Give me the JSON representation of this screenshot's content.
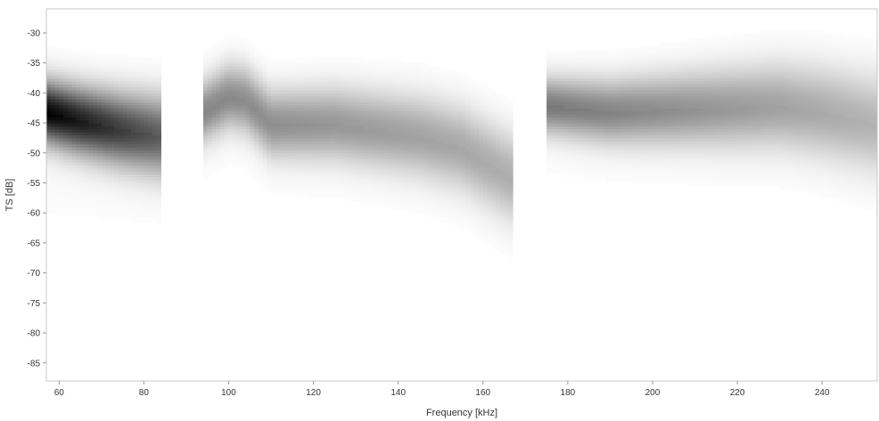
{
  "chart_data": {
    "type": "heatmap",
    "title": "",
    "xlabel": "Frequency [kHz]",
    "ylabel": "TS [dB]",
    "xlim": [
      57,
      253
    ],
    "ylim": [
      -88,
      -26
    ],
    "x_ticks": [
      60,
      80,
      100,
      120,
      140,
      160,
      180,
      200,
      220,
      240
    ],
    "y_ticks": [
      -30,
      -35,
      -40,
      -45,
      -50,
      -55,
      -60,
      -65,
      -70,
      -75,
      -80,
      -85
    ],
    "grid": false,
    "legend": "none",
    "colormap": {
      "low": "#ffffff",
      "high": "#000000"
    },
    "gaps_khz": [
      [
        84,
        94
      ],
      [
        167,
        175
      ]
    ],
    "bands": [
      {
        "x": [
          57,
          84
        ],
        "center": [
          [
            57,
            -43
          ],
          [
            65,
            -44.5
          ],
          [
            75,
            -46
          ],
          [
            84,
            -47
          ]
        ],
        "spread": [
          3.5,
          4.5
        ],
        "peak": [
          0.95,
          0.6
        ]
      },
      {
        "x": [
          94,
          167
        ],
        "center": [
          [
            94,
            -43
          ],
          [
            100,
            -40.5
          ],
          [
            104,
            -41
          ],
          [
            110,
            -45
          ],
          [
            125,
            -45
          ],
          [
            145,
            -47
          ],
          [
            155,
            -49
          ],
          [
            167,
            -54
          ]
        ],
        "spread": [
          3.5,
          5
        ],
        "peak": [
          0.45,
          0.3
        ]
      },
      {
        "x": [
          175,
          253
        ],
        "center": [
          [
            175,
            -42
          ],
          [
            190,
            -43
          ],
          [
            210,
            -42.5
          ],
          [
            230,
            -42
          ],
          [
            240,
            -43
          ],
          [
            253,
            -45
          ]
        ],
        "spread": [
          3.2,
          5.5
        ],
        "peak": [
          0.5,
          0.28
        ]
      }
    ]
  }
}
